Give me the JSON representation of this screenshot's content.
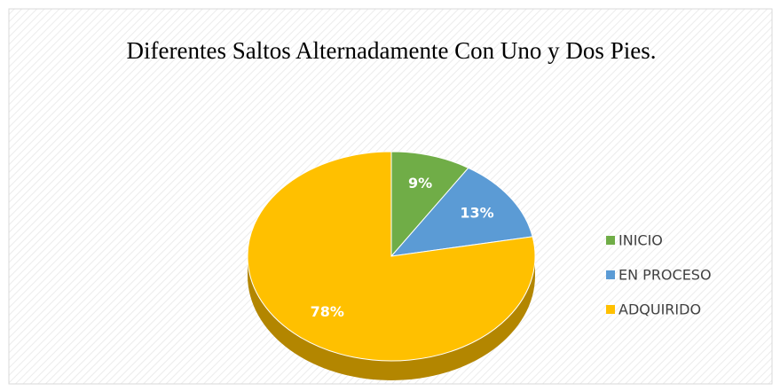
{
  "chart_data": {
    "type": "pie",
    "title": "Diferentes Saltos Alternadamente Con Uno y Dos Pies.",
    "categories": [
      "INICIO",
      "EN PROCESO",
      "ADQUIRIDO"
    ],
    "values": [
      9,
      13,
      78
    ],
    "value_labels": [
      "9%",
      "13%",
      "78%"
    ],
    "colors": [
      "#70ad47",
      "#5b9bd5",
      "#ffc000"
    ],
    "legend": "right"
  }
}
